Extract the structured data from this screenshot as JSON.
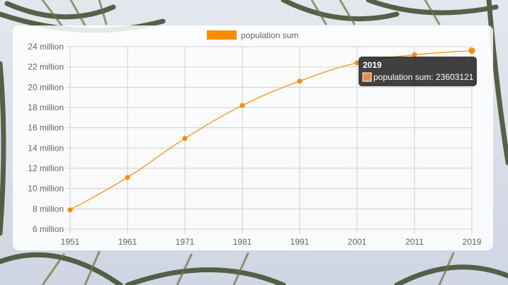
{
  "colors": {
    "series": "#ff8c00",
    "grid": "#d0d0d0",
    "axis_text": "#666666",
    "tooltip_bg": "#1e1e1e",
    "tooltip_swatch": "#e98a45"
  },
  "legend": {
    "label": "population sum",
    "icon": "orange-rectangle-icon"
  },
  "tooltip": {
    "title": "2019",
    "body": "population sum: 23603121"
  },
  "chart_data": {
    "type": "line",
    "title": "",
    "xlabel": "",
    "ylabel": "",
    "categories": [
      "1951",
      "1961",
      "1971",
      "1981",
      "1991",
      "2001",
      "2011",
      "2019"
    ],
    "series": [
      {
        "name": "population sum",
        "values": [
          7900000,
          11100000,
          14950000,
          18200000,
          20600000,
          22400000,
          23200000,
          23603121
        ]
      }
    ],
    "ylim": [
      6000000,
      24000000
    ],
    "yticks": [
      "6 million",
      "8 million",
      "10 million",
      "12 million",
      "14 million",
      "16 million",
      "18 million",
      "20 million",
      "22 million",
      "24 million"
    ],
    "grid": true,
    "legend_position": "top"
  }
}
